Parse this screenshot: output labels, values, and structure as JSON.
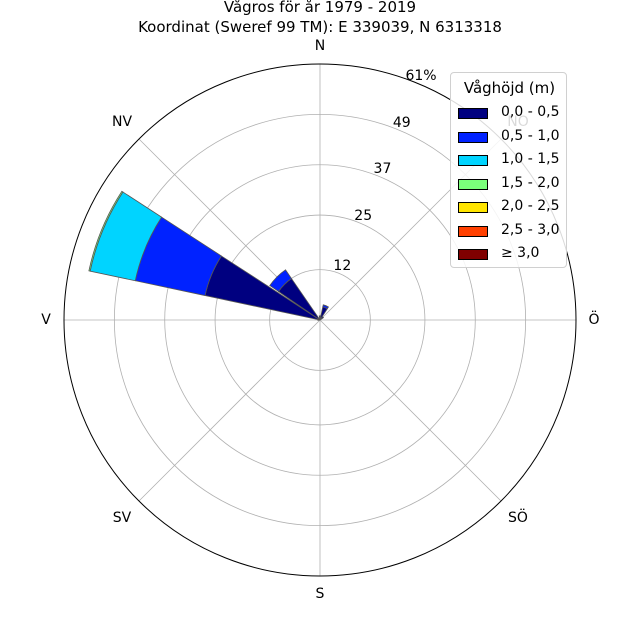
{
  "title_line1": "Vågros för år 1979 - 2019",
  "title_line2": "Koordinat (Sweref 99 TM): E 339039, N 6313318",
  "directions": [
    "N",
    "NV",
    "V",
    "SV",
    "S",
    "SÖ",
    "Ö",
    "NO"
  ],
  "chart_data": {
    "type": "polar-stacked-bar",
    "radial_ticks": [
      "12",
      "25",
      "37",
      "49",
      "61%"
    ],
    "radial_tick_values": [
      12,
      25,
      37,
      49,
      61
    ],
    "rmax": 61,
    "direction_angles": {
      "N": 0,
      "NV": 315,
      "V": 270,
      "SV": 225,
      "S": 180,
      "SÖ": 135,
      "Ö": 90,
      "NO": 45
    },
    "legend_title": "Våghöjd (m)",
    "legend": [
      {
        "label": "0,0 - 0,5",
        "color": "#000080"
      },
      {
        "label": "0,5 - 1,0",
        "color": "#0022ff"
      },
      {
        "label": "1,0 - 1,5",
        "color": "#00d4ff"
      },
      {
        "label": "1,5 - 2,0",
        "color": "#7bff7b"
      },
      {
        "label": "2,0 - 2,5",
        "color": "#ffe500"
      },
      {
        "label": "2,5 - 3,0",
        "color": "#ff4000"
      },
      {
        "label": "≥ 3,0",
        "color": "#800000"
      }
    ],
    "bars": [
      {
        "direction_deg": 292.5,
        "segments": [
          28,
          17,
          11,
          0.3,
          0,
          0,
          0
        ]
      },
      {
        "direction_deg": 315,
        "segments": [
          12,
          2.5,
          0,
          0,
          0,
          0,
          0
        ]
      },
      {
        "direction_deg": 337.5,
        "segments": [
          0.5,
          0,
          0,
          0,
          0,
          0,
          0
        ]
      },
      {
        "direction_deg": 0,
        "segments": [
          1.0,
          0,
          0,
          0,
          0,
          0,
          0
        ]
      },
      {
        "direction_deg": 22.5,
        "segments": [
          3.2,
          0.5,
          0,
          0,
          0,
          0,
          0
        ]
      },
      {
        "direction_deg": 45,
        "segments": [
          1.0,
          0,
          0,
          0,
          0,
          0,
          0
        ]
      },
      {
        "direction_deg": 270,
        "segments": [
          0.5,
          0,
          0,
          0,
          0,
          0,
          0
        ]
      }
    ],
    "grid": true
  }
}
